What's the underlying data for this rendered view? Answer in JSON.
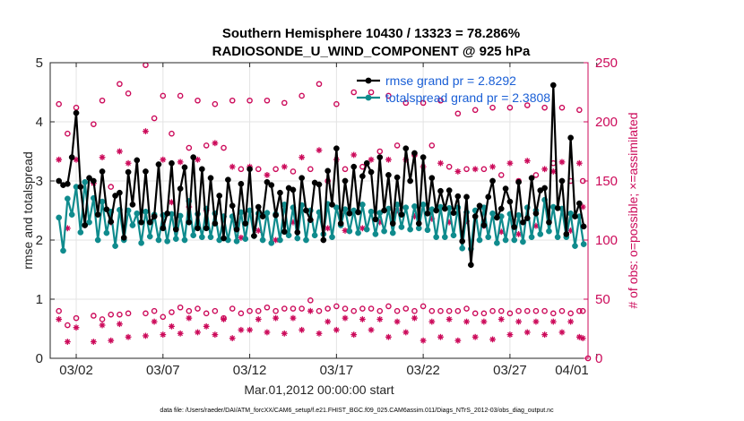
{
  "chart_data": {
    "type": "line",
    "title": "Southern Hemisphere 10430 / 13323 = 78.286%",
    "subtitle": "RADIOSONDE_U_WIND_COMPONENT @ 925 hPa",
    "xlabel": "Mar.01,2012 00:00:00 start",
    "ylabel": "rmse and totalspread",
    "ylabel_right": "# of obs: o=possible; ×=assimilated",
    "footer": "data file: /Users/raeder/DAI/ATM_forcXX/CAM6_setup/f.e21.FHIST_BGC.f09_025.CAM6assim.011/Diags_NTrS_2012-03/obs_diag_output.nc",
    "xlim": [
      0.5,
      31.5
    ],
    "ylim": [
      0,
      5
    ],
    "ylim_right": [
      0,
      250
    ],
    "x_ticks": [
      {
        "value": 2,
        "label": "03/02"
      },
      {
        "value": 7,
        "label": "03/07"
      },
      {
        "value": 12,
        "label": "03/12"
      },
      {
        "value": 17,
        "label": "03/17"
      },
      {
        "value": 22,
        "label": "03/22"
      },
      {
        "value": 27,
        "label": "03/27"
      },
      {
        "value": 32,
        "label": "04/01"
      }
    ],
    "y_ticks": [
      "0",
      "1",
      "2",
      "3",
      "4",
      "5"
    ],
    "y_right_ticks": [
      "0",
      "50",
      "100",
      "150",
      "200",
      "250"
    ],
    "grid": true,
    "legend_position": "top-right",
    "x": [
      1.0,
      1.25,
      1.5,
      1.75,
      2.0,
      2.25,
      2.5,
      2.75,
      3.0,
      3.25,
      3.5,
      3.75,
      4.0,
      4.25,
      4.5,
      4.75,
      5.0,
      5.25,
      5.5,
      5.75,
      6.0,
      6.25,
      6.5,
      6.75,
      7.0,
      7.25,
      7.5,
      7.75,
      8.0,
      8.25,
      8.5,
      8.75,
      9.0,
      9.25,
      9.5,
      9.75,
      10.0,
      10.25,
      10.5,
      10.75,
      11.0,
      11.25,
      11.5,
      11.75,
      12.0,
      12.25,
      12.5,
      12.75,
      13.0,
      13.25,
      13.5,
      13.75,
      14.0,
      14.25,
      14.5,
      14.75,
      15.0,
      15.25,
      15.5,
      15.75,
      16.0,
      16.25,
      16.5,
      16.75,
      17.0,
      17.25,
      17.5,
      17.75,
      18.0,
      18.25,
      18.5,
      18.75,
      19.0,
      19.25,
      19.5,
      19.75,
      20.0,
      20.25,
      20.5,
      20.75,
      21.0,
      21.25,
      21.5,
      21.75,
      22.0,
      22.25,
      22.5,
      22.75,
      23.0,
      23.25,
      23.5,
      23.75,
      24.0,
      24.25,
      24.5,
      24.75,
      25.0,
      25.25,
      25.5,
      25.75,
      26.0,
      26.25,
      26.5,
      26.75,
      27.0,
      27.25,
      27.5,
      27.75,
      28.0,
      28.25,
      28.5,
      28.75,
      29.0,
      29.25,
      29.5,
      29.75,
      30.0,
      30.25,
      30.5,
      30.75,
      31.0,
      31.25
    ],
    "series": [
      {
        "name": "rmse",
        "legend": "rmse grand pr = 2.8292",
        "color": "#000000",
        "values": [
          3.0,
          2.93,
          2.95,
          3.4,
          4.15,
          2.9,
          2.25,
          3.05,
          3.0,
          2.43,
          3.16,
          2.52,
          2.31,
          2.75,
          2.8,
          2.04,
          3.15,
          2.6,
          3.35,
          2.3,
          3.16,
          2.3,
          2.4,
          3.28,
          2.2,
          2.45,
          3.3,
          2.18,
          2.87,
          3.23,
          2.3,
          3.4,
          2.2,
          3.2,
          2.2,
          3.05,
          2.28,
          2.75,
          2.03,
          3.02,
          2.58,
          2.18,
          2.95,
          2.28,
          3.2,
          2.07,
          2.56,
          2.4,
          2.98,
          2.93,
          2.42,
          2.8,
          2.14,
          2.88,
          2.85,
          2.13,
          3.05,
          2.5,
          2.34,
          2.97,
          2.94,
          2.0,
          3.17,
          2.6,
          3.55,
          2.28,
          3.0,
          2.45,
          3.24,
          2.47,
          3.08,
          3.3,
          3.15,
          2.35,
          3.4,
          2.5,
          3.1,
          2.28,
          3.06,
          2.43,
          3.55,
          3.0,
          3.47,
          2.28,
          3.4,
          2.45,
          3.05,
          2.5,
          2.83,
          2.53,
          2.84,
          2.46,
          2.74,
          1.98,
          2.73,
          1.58,
          2.4,
          2.58,
          2.25,
          2.73,
          3.0,
          2.38,
          2.53,
          2.87,
          2.65,
          2.22,
          2.98,
          2.3,
          2.37,
          3.05,
          2.45,
          2.84,
          2.88,
          2.3,
          4.62,
          2.54,
          3.0,
          2.1,
          3.73,
          2.4,
          2.62,
          2.23
        ]
      },
      {
        "name": "totalspread",
        "legend": "totalspread grand pr = 2.3808",
        "color": "#0f8b8d",
        "values": [
          2.38,
          1.82,
          2.7,
          2.43,
          2.9,
          2.13,
          2.98,
          2.3,
          2.71,
          2.0,
          2.65,
          2.12,
          2.48,
          1.9,
          2.51,
          2.0,
          2.5,
          2.25,
          2.45,
          1.95,
          2.48,
          2.06,
          2.43,
          2.0,
          2.42,
          1.98,
          2.44,
          2.02,
          2.41,
          2.0,
          2.66,
          2.08,
          2.44,
          2.05,
          2.53,
          2.05,
          2.45,
          2.0,
          2.4,
          2.0,
          2.4,
          1.98,
          2.47,
          2.02,
          2.5,
          2.07,
          2.45,
          2.0,
          2.46,
          1.95,
          2.44,
          2.0,
          2.6,
          2.08,
          2.55,
          2.03,
          2.59,
          2.0,
          2.5,
          2.08,
          2.47,
          2.1,
          2.61,
          2.05,
          2.55,
          2.25,
          2.52,
          2.15,
          2.5,
          2.12,
          2.6,
          2.18,
          2.48,
          2.1,
          2.46,
          2.15,
          2.53,
          2.12,
          2.6,
          2.22,
          2.55,
          2.18,
          2.57,
          2.2,
          2.6,
          2.17,
          2.52,
          2.05,
          2.56,
          2.05,
          2.54,
          2.08,
          2.55,
          1.86,
          2.47,
          1.85,
          2.5,
          2.0,
          2.55,
          2.05,
          2.45,
          1.95,
          2.4,
          2.0,
          2.44,
          2.0,
          2.42,
          1.97,
          2.55,
          2.05,
          2.5,
          2.1,
          2.68,
          2.15,
          2.56,
          2.05,
          2.53,
          2.05,
          2.45,
          1.9,
          2.4,
          1.93
        ]
      }
    ],
    "obs_possible": [
      {
        "x": 1.0,
        "top": 215,
        "bottom": 40
      },
      {
        "x": 1.5,
        "top": 190,
        "bottom": 28
      },
      {
        "x": 2.0,
        "top": 212,
        "bottom": 34
      },
      {
        "x": 3.0,
        "top": 198,
        "bottom": 36
      },
      {
        "x": 3.5,
        "top": 218,
        "bottom": 33
      },
      {
        "x": 4.0,
        "top": 145,
        "bottom": 37
      },
      {
        "x": 4.5,
        "top": 232,
        "bottom": 37
      },
      {
        "x": 5.0,
        "top": 224,
        "bottom": 38
      },
      {
        "x": 6.0,
        "top": 248,
        "bottom": 38
      },
      {
        "x": 6.5,
        "top": 203,
        "bottom": 40
      },
      {
        "x": 7.0,
        "top": 222,
        "bottom": 35
      },
      {
        "x": 7.5,
        "top": 190,
        "bottom": 39
      },
      {
        "x": 8.0,
        "top": 222,
        "bottom": 43
      },
      {
        "x": 8.5,
        "top": 178,
        "bottom": 40
      },
      {
        "x": 9.0,
        "top": 218,
        "bottom": 42
      },
      {
        "x": 9.5,
        "top": 180,
        "bottom": 38
      },
      {
        "x": 10.0,
        "top": 215,
        "bottom": 40
      },
      {
        "x": 10.5,
        "top": 178,
        "bottom": 34
      },
      {
        "x": 11.0,
        "top": 218,
        "bottom": 42
      },
      {
        "x": 11.5,
        "top": 160,
        "bottom": 38
      },
      {
        "x": 12.0,
        "top": 218,
        "bottom": 40
      },
      {
        "x": 12.5,
        "top": 160,
        "bottom": 40
      },
      {
        "x": 13.0,
        "top": 218,
        "bottom": 43
      },
      {
        "x": 13.5,
        "top": 160,
        "bottom": 40
      },
      {
        "x": 14.0,
        "top": 216,
        "bottom": 42
      },
      {
        "x": 14.5,
        "top": 158,
        "bottom": 42
      },
      {
        "x": 15.0,
        "top": 222,
        "bottom": 42
      },
      {
        "x": 15.5,
        "top": 160,
        "bottom": 49
      },
      {
        "x": 16.0,
        "top": 232,
        "bottom": 40
      },
      {
        "x": 16.5,
        "top": 150,
        "bottom": 42
      },
      {
        "x": 17.0,
        "top": 215,
        "bottom": 44
      },
      {
        "x": 17.5,
        "top": 160,
        "bottom": 42
      },
      {
        "x": 18.0,
        "top": 225,
        "bottom": 40
      },
      {
        "x": 18.5,
        "top": 162,
        "bottom": 42
      },
      {
        "x": 19.0,
        "top": 225,
        "bottom": 42
      },
      {
        "x": 19.5,
        "top": 175,
        "bottom": 40
      },
      {
        "x": 20.0,
        "top": 222,
        "bottom": 44
      },
      {
        "x": 20.5,
        "top": 180,
        "bottom": 40
      },
      {
        "x": 21.0,
        "top": 216,
        "bottom": 42
      },
      {
        "x": 21.5,
        "top": 172,
        "bottom": 40
      },
      {
        "x": 22.0,
        "top": 216,
        "bottom": 44
      },
      {
        "x": 22.5,
        "top": 180,
        "bottom": 40
      },
      {
        "x": 23.0,
        "top": 218,
        "bottom": 40
      },
      {
        "x": 23.5,
        "top": 162,
        "bottom": 40
      },
      {
        "x": 24.0,
        "top": 207,
        "bottom": 40
      },
      {
        "x": 24.5,
        "top": 160,
        "bottom": 42
      },
      {
        "x": 25.0,
        "top": 210,
        "bottom": 38
      },
      {
        "x": 25.5,
        "top": 160,
        "bottom": 38
      },
      {
        "x": 26.0,
        "top": 212,
        "bottom": 40
      },
      {
        "x": 26.5,
        "top": 155,
        "bottom": 40
      },
      {
        "x": 27.0,
        "top": 212,
        "bottom": 38
      },
      {
        "x": 27.5,
        "top": 150,
        "bottom": 40
      },
      {
        "x": 28.0,
        "top": 214,
        "bottom": 40
      },
      {
        "x": 28.5,
        "top": 155,
        "bottom": 40
      },
      {
        "x": 29.0,
        "top": 212,
        "bottom": 40
      },
      {
        "x": 29.5,
        "top": 165,
        "bottom": 38
      },
      {
        "x": 30.0,
        "top": 212,
        "bottom": 40
      },
      {
        "x": 30.5,
        "top": 150,
        "bottom": 38
      },
      {
        "x": 31.0,
        "top": 210,
        "bottom": 40
      },
      {
        "x": 31.2,
        "top": 150,
        "bottom": 40
      }
    ],
    "obs_assimilated": [
      {
        "x": 1.0,
        "top": 168,
        "bottom": 33
      },
      {
        "x": 1.5,
        "top": 110,
        "bottom": 14
      },
      {
        "x": 2.0,
        "top": 168,
        "bottom": 26
      },
      {
        "x": 3.0,
        "top": 148,
        "bottom": 14
      },
      {
        "x": 3.5,
        "top": 170,
        "bottom": 28
      },
      {
        "x": 4.0,
        "top": 115,
        "bottom": 15
      },
      {
        "x": 4.5,
        "top": 175,
        "bottom": 29
      },
      {
        "x": 5.0,
        "top": 165,
        "bottom": 18
      },
      {
        "x": 6.0,
        "top": 192,
        "bottom": 19
      },
      {
        "x": 6.5,
        "top": 120,
        "bottom": 31
      },
      {
        "x": 7.0,
        "top": 168,
        "bottom": 20
      },
      {
        "x": 7.5,
        "top": 132,
        "bottom": 27
      },
      {
        "x": 8.0,
        "top": 166,
        "bottom": 21
      },
      {
        "x": 8.5,
        "top": 128,
        "bottom": 34
      },
      {
        "x": 9.0,
        "top": 168,
        "bottom": 22
      },
      {
        "x": 9.5,
        "top": 125,
        "bottom": 27
      },
      {
        "x": 10.0,
        "top": 182,
        "bottom": 20
      },
      {
        "x": 10.5,
        "top": 120,
        "bottom": 33
      },
      {
        "x": 11.0,
        "top": 162,
        "bottom": 17
      },
      {
        "x": 11.5,
        "top": 102,
        "bottom": 24
      },
      {
        "x": 12.0,
        "top": 162,
        "bottom": 24
      },
      {
        "x": 12.5,
        "top": 108,
        "bottom": 33
      },
      {
        "x": 13.0,
        "top": 155,
        "bottom": 22
      },
      {
        "x": 13.5,
        "top": 100,
        "bottom": 34
      },
      {
        "x": 14.0,
        "top": 162,
        "bottom": 21
      },
      {
        "x": 14.5,
        "top": 115,
        "bottom": 34
      },
      {
        "x": 15.0,
        "top": 170,
        "bottom": 24
      },
      {
        "x": 15.5,
        "top": 117,
        "bottom": 40
      },
      {
        "x": 16.0,
        "top": 176,
        "bottom": 21
      },
      {
        "x": 16.5,
        "top": 110,
        "bottom": 31
      },
      {
        "x": 17.0,
        "top": 168,
        "bottom": 24
      },
      {
        "x": 17.5,
        "top": 108,
        "bottom": 34
      },
      {
        "x": 18.0,
        "top": 172,
        "bottom": 20
      },
      {
        "x": 18.5,
        "top": 110,
        "bottom": 33
      },
      {
        "x": 19.0,
        "top": 168,
        "bottom": 24
      },
      {
        "x": 19.5,
        "top": 115,
        "bottom": 33
      },
      {
        "x": 20.0,
        "top": 168,
        "bottom": 18
      },
      {
        "x": 20.5,
        "top": 125,
        "bottom": 31
      },
      {
        "x": 21.0,
        "top": 168,
        "bottom": 22
      },
      {
        "x": 21.5,
        "top": 120,
        "bottom": 34
      },
      {
        "x": 22.0,
        "top": 162,
        "bottom": 15
      },
      {
        "x": 22.5,
        "top": 118,
        "bottom": 31
      },
      {
        "x": 23.0,
        "top": 165,
        "bottom": 18
      },
      {
        "x": 23.5,
        "top": 115,
        "bottom": 33
      },
      {
        "x": 24.0,
        "top": 158,
        "bottom": 15
      },
      {
        "x": 24.5,
        "top": 116,
        "bottom": 31
      },
      {
        "x": 25.0,
        "top": 160,
        "bottom": 18
      },
      {
        "x": 25.5,
        "top": 112,
        "bottom": 31
      },
      {
        "x": 26.0,
        "top": 162,
        "bottom": 16
      },
      {
        "x": 26.5,
        "top": 107,
        "bottom": 33
      },
      {
        "x": 27.0,
        "top": 165,
        "bottom": 20
      },
      {
        "x": 27.5,
        "top": 105,
        "bottom": 31
      },
      {
        "x": 28.0,
        "top": 167,
        "bottom": 22
      },
      {
        "x": 28.5,
        "top": 112,
        "bottom": 31
      },
      {
        "x": 29.0,
        "top": 160,
        "bottom": 20
      },
      {
        "x": 29.5,
        "top": 158,
        "bottom": 31
      },
      {
        "x": 30.0,
        "top": 166,
        "bottom": 22
      },
      {
        "x": 30.5,
        "top": 108,
        "bottom": 31
      },
      {
        "x": 31.0,
        "top": 165,
        "bottom": 18
      },
      {
        "x": 31.2,
        "top": 128,
        "bottom": 17
      }
    ],
    "obs_possible_zero": {
      "x": 31.5,
      "value": 0
    }
  },
  "colors": {
    "rmse": "#000000",
    "totalspread": "#0f8b8d",
    "obs": "#cc0a5a",
    "legend_text": "#1a5fd6"
  }
}
